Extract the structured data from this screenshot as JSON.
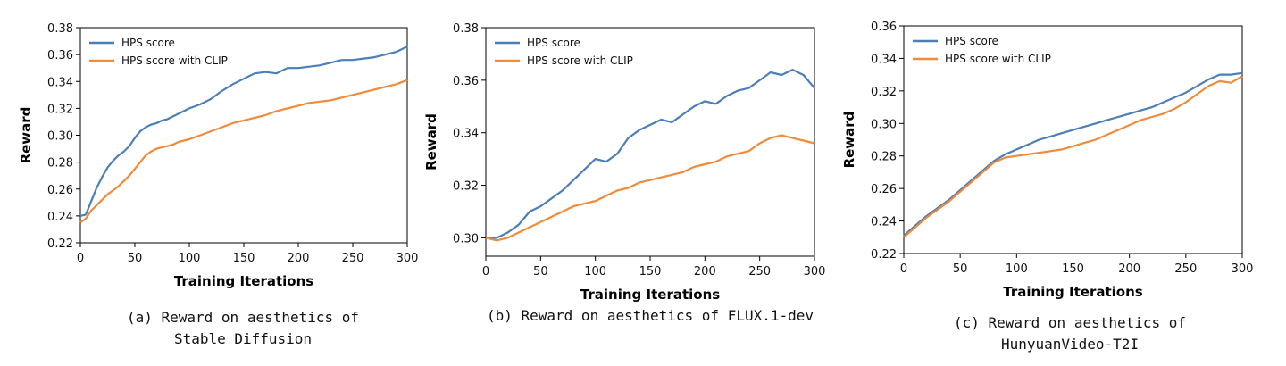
{
  "chart_data": [
    {
      "type": "line",
      "xlabel": "Training Iterations",
      "ylabel": "Reward",
      "xlim": [
        0,
        300
      ],
      "ylim": [
        0.22,
        0.38
      ],
      "xticks": [
        0,
        50,
        100,
        150,
        200,
        250,
        300
      ],
      "yticks": [
        "0.22",
        "0.24",
        "0.26",
        "0.28",
        "0.30",
        "0.32",
        "0.34",
        "0.36",
        "0.38"
      ],
      "legend_position": "top-left",
      "caption": [
        "(a) Reward on aesthetics of",
        "Stable Diffusion"
      ],
      "series": [
        {
          "name": "HPS score",
          "color": "#4c7fb8",
          "x": [
            0,
            5,
            10,
            15,
            20,
            25,
            30,
            35,
            40,
            45,
            50,
            55,
            60,
            65,
            70,
            75,
            80,
            85,
            90,
            95,
            100,
            110,
            120,
            130,
            140,
            150,
            160,
            170,
            180,
            190,
            200,
            210,
            220,
            230,
            240,
            250,
            260,
            270,
            280,
            290,
            300
          ],
          "values": [
            0.24,
            0.241,
            0.251,
            0.261,
            0.269,
            0.276,
            0.281,
            0.285,
            0.288,
            0.292,
            0.298,
            0.303,
            0.306,
            0.308,
            0.309,
            0.311,
            0.312,
            0.314,
            0.316,
            0.318,
            0.32,
            0.323,
            0.327,
            0.333,
            0.338,
            0.342,
            0.346,
            0.347,
            0.346,
            0.35,
            0.35,
            0.351,
            0.352,
            0.354,
            0.356,
            0.356,
            0.357,
            0.358,
            0.36,
            0.362,
            0.366
          ]
        },
        {
          "name": "HPS score with CLIP",
          "color": "#ef8b3a",
          "x": [
            0,
            5,
            10,
            15,
            20,
            25,
            30,
            35,
            40,
            45,
            50,
            55,
            60,
            65,
            70,
            75,
            80,
            85,
            90,
            95,
            100,
            110,
            120,
            130,
            140,
            150,
            160,
            170,
            180,
            190,
            200,
            210,
            220,
            230,
            240,
            250,
            260,
            270,
            280,
            290,
            300
          ],
          "values": [
            0.235,
            0.238,
            0.244,
            0.248,
            0.252,
            0.256,
            0.259,
            0.262,
            0.266,
            0.27,
            0.275,
            0.28,
            0.285,
            0.288,
            0.29,
            0.291,
            0.292,
            0.293,
            0.295,
            0.296,
            0.297,
            0.3,
            0.303,
            0.306,
            0.309,
            0.311,
            0.313,
            0.315,
            0.318,
            0.32,
            0.322,
            0.324,
            0.325,
            0.326,
            0.328,
            0.33,
            0.332,
            0.334,
            0.336,
            0.338,
            0.341
          ]
        }
      ]
    },
    {
      "type": "line",
      "xlabel": "Training Iterations",
      "ylabel": "Reward",
      "xlim": [
        0,
        300
      ],
      "ylim": [
        0.293,
        0.38
      ],
      "xticks": [
        0,
        50,
        100,
        150,
        200,
        250,
        300
      ],
      "yticks": [
        "0.30",
        "0.32",
        "0.34",
        "0.36",
        "0.38"
      ],
      "legend_position": "top-left",
      "caption": [
        "(b) Reward on aesthetics of FLUX.1-dev"
      ],
      "series": [
        {
          "name": "HPS score",
          "color": "#4c7fb8",
          "x": [
            0,
            10,
            20,
            30,
            40,
            50,
            60,
            70,
            80,
            90,
            100,
            110,
            120,
            130,
            140,
            150,
            160,
            170,
            180,
            190,
            200,
            210,
            220,
            230,
            240,
            250,
            260,
            270,
            280,
            290,
            300
          ],
          "values": [
            0.3,
            0.3,
            0.302,
            0.305,
            0.31,
            0.312,
            0.315,
            0.318,
            0.322,
            0.326,
            0.33,
            0.329,
            0.332,
            0.338,
            0.341,
            0.343,
            0.345,
            0.344,
            0.347,
            0.35,
            0.352,
            0.351,
            0.354,
            0.356,
            0.357,
            0.36,
            0.363,
            0.362,
            0.364,
            0.362,
            0.357
          ]
        },
        {
          "name": "HPS score with CLIP",
          "color": "#ef8b3a",
          "x": [
            0,
            10,
            20,
            30,
            40,
            50,
            60,
            70,
            80,
            90,
            100,
            110,
            120,
            130,
            140,
            150,
            160,
            170,
            180,
            190,
            200,
            210,
            220,
            230,
            240,
            250,
            260,
            270,
            280,
            290,
            300
          ],
          "values": [
            0.3,
            0.299,
            0.3,
            0.302,
            0.304,
            0.306,
            0.308,
            0.31,
            0.312,
            0.313,
            0.314,
            0.316,
            0.318,
            0.319,
            0.321,
            0.322,
            0.323,
            0.324,
            0.325,
            0.327,
            0.328,
            0.329,
            0.331,
            0.332,
            0.333,
            0.336,
            0.338,
            0.339,
            0.338,
            0.337,
            0.336
          ]
        }
      ]
    },
    {
      "type": "line",
      "xlabel": "Training Iterations",
      "ylabel": "Reward",
      "xlim": [
        0,
        300
      ],
      "ylim": [
        0.22,
        0.36
      ],
      "xticks": [
        0,
        50,
        100,
        150,
        200,
        250,
        300
      ],
      "yticks": [
        "0.22",
        "0.24",
        "0.26",
        "0.28",
        "0.30",
        "0.32",
        "0.34",
        "0.36"
      ],
      "legend_position": "top-left",
      "caption": [
        "(c) Reward on aesthetics of",
        "HunyuanVideo-T2I"
      ],
      "series": [
        {
          "name": "HPS score",
          "color": "#4c7fb8",
          "x": [
            0,
            10,
            20,
            30,
            40,
            50,
            60,
            70,
            80,
            90,
            100,
            110,
            120,
            130,
            140,
            150,
            160,
            170,
            180,
            190,
            200,
            210,
            220,
            230,
            240,
            250,
            260,
            270,
            280,
            290,
            300
          ],
          "values": [
            0.231,
            0.237,
            0.243,
            0.248,
            0.253,
            0.259,
            0.265,
            0.271,
            0.277,
            0.281,
            0.284,
            0.287,
            0.29,
            0.292,
            0.294,
            0.296,
            0.298,
            0.3,
            0.302,
            0.304,
            0.306,
            0.308,
            0.31,
            0.313,
            0.316,
            0.319,
            0.323,
            0.327,
            0.33,
            0.33,
            0.331
          ]
        },
        {
          "name": "HPS score with CLIP",
          "color": "#ef8b3a",
          "x": [
            0,
            10,
            20,
            30,
            40,
            50,
            60,
            70,
            80,
            90,
            100,
            110,
            120,
            130,
            140,
            150,
            160,
            170,
            180,
            190,
            200,
            210,
            220,
            230,
            240,
            250,
            260,
            270,
            280,
            290,
            300
          ],
          "values": [
            0.23,
            0.236,
            0.242,
            0.247,
            0.252,
            0.258,
            0.264,
            0.27,
            0.276,
            0.279,
            0.28,
            0.281,
            0.282,
            0.283,
            0.284,
            0.286,
            0.288,
            0.29,
            0.293,
            0.296,
            0.299,
            0.302,
            0.304,
            0.306,
            0.309,
            0.313,
            0.318,
            0.323,
            0.326,
            0.325,
            0.329
          ]
        }
      ]
    }
  ]
}
